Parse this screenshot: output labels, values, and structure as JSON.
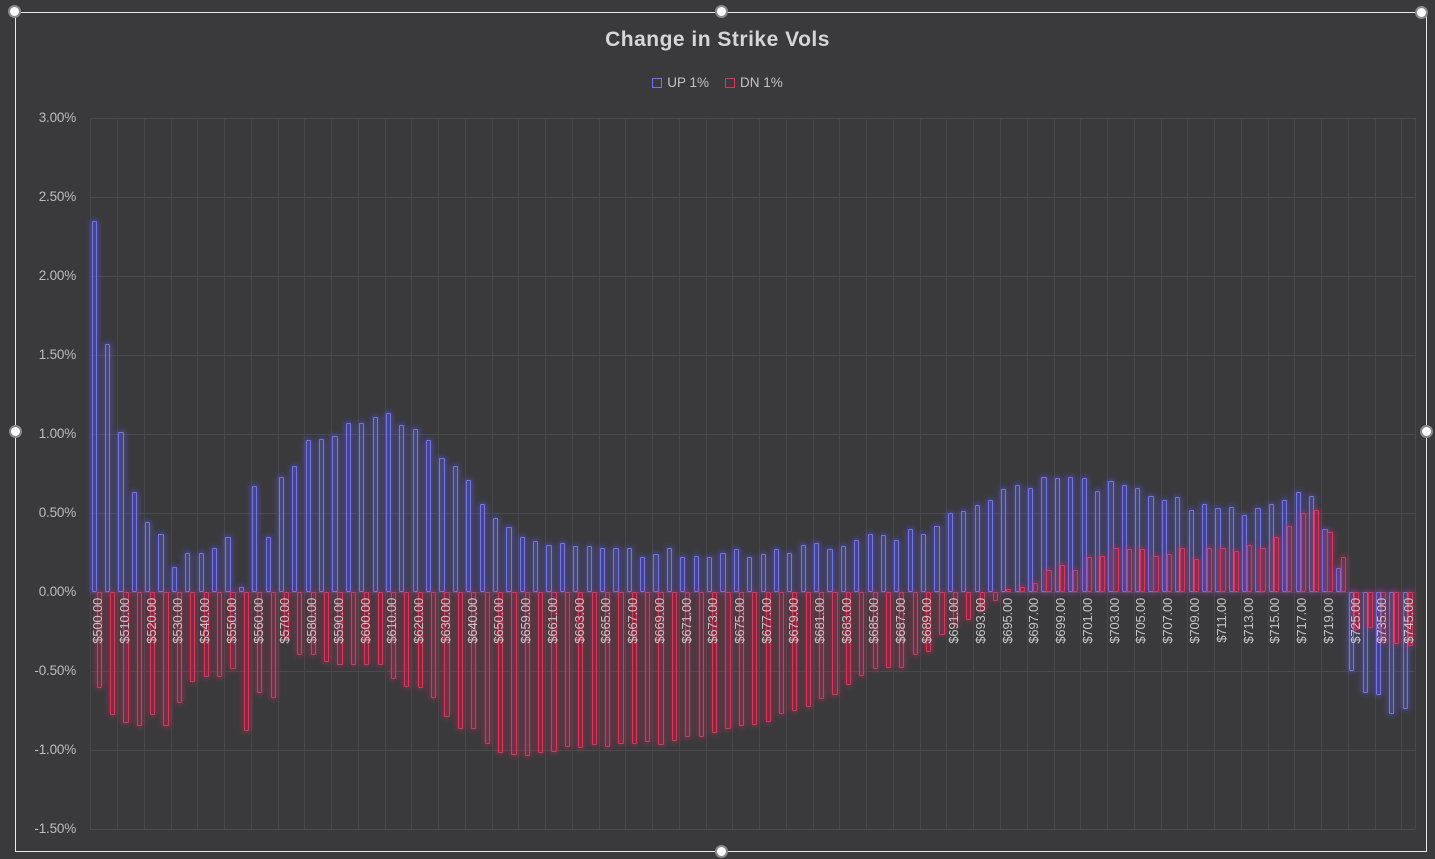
{
  "chart": {
    "title": "Change in Strike Vols",
    "legend_up_label": "UP 1%",
    "legend_dn_label": "DN 1%"
  },
  "colors": {
    "background": "#3a3a3d",
    "gridline": "#4b4b4f",
    "axis_text": "#bcbcbc",
    "title_text": "#d6d6d6",
    "up_stroke": "#7373f0",
    "dn_stroke": "#e0335a",
    "selection_frame": "#e9e9e9"
  },
  "chart_data": {
    "type": "bar",
    "title": "Change in Strike Vols",
    "xlabel": "",
    "ylabel": "",
    "ylim": [
      -1.5,
      3.0
    ],
    "grid": true,
    "legend_position": "top",
    "y_tick_labels": [
      "3.00%",
      "2.50%",
      "2.00%",
      "1.50%",
      "1.00%",
      "0.50%",
      "0.00%",
      "-0.50%",
      "-1.00%",
      "-1.50%"
    ],
    "y_tick_values": [
      3.0,
      2.5,
      2.0,
      1.5,
      1.0,
      0.5,
      0.0,
      -0.5,
      -1.0,
      -1.5
    ],
    "x_label_every": 2,
    "x_tick_labels": [
      "$500.00",
      "$510.00",
      "$520.00",
      "$530.00",
      "$540.00",
      "$550.00",
      "$560.00",
      "$570.00",
      "$580.00",
      "$590.00",
      "$600.00",
      "$610.00",
      "$620.00",
      "$630.00",
      "$640.00",
      "$650.00",
      "$659.00",
      "$661.00",
      "$663.00",
      "$665.00",
      "$667.00",
      "$669.00",
      "$671.00",
      "$673.00",
      "$675.00",
      "$677.00",
      "$679.00",
      "$681.00",
      "$683.00",
      "$685.00",
      "$687.00",
      "$689.00",
      "$691.00",
      "$693.00",
      "$695.00",
      "$697.00",
      "$699.00",
      "$701.00",
      "$703.00",
      "$705.00",
      "$707.00",
      "$709.00",
      "$711.00",
      "$713.00",
      "$715.00",
      "$717.00",
      "$719.00",
      "$725.00",
      "$735.00",
      "$745.00"
    ],
    "categories": [
      500,
      505,
      510,
      515,
      520,
      525,
      530,
      535,
      540,
      545,
      550,
      555,
      560,
      565,
      570,
      575,
      580,
      585,
      590,
      595,
      600,
      605,
      610,
      615,
      620,
      625,
      630,
      635,
      640,
      645,
      650,
      655,
      659,
      660,
      661,
      662,
      663,
      664,
      665,
      666,
      667,
      668,
      669,
      670,
      671,
      672,
      673,
      674,
      675,
      676,
      677,
      678,
      679,
      680,
      681,
      682,
      683,
      684,
      685,
      686,
      687,
      688,
      689,
      690,
      691,
      692,
      693,
      694,
      695,
      696,
      697,
      698,
      699,
      700,
      701,
      702,
      703,
      704,
      705,
      706,
      707,
      708,
      709,
      710,
      711,
      712,
      713,
      714,
      715,
      716,
      717,
      718,
      719,
      720,
      725,
      730,
      735,
      740,
      745
    ],
    "series": [
      {
        "name": "UP 1%",
        "color": "#7373f0",
        "values": [
          2.35,
          1.57,
          1.01,
          0.63,
          0.44,
          0.37,
          0.16,
          0.25,
          0.25,
          0.28,
          0.35,
          0.03,
          0.67,
          0.35,
          0.73,
          0.8,
          0.96,
          0.97,
          0.99,
          1.07,
          1.07,
          1.11,
          1.13,
          1.06,
          1.03,
          0.96,
          0.85,
          0.8,
          0.71,
          0.56,
          0.47,
          0.41,
          0.35,
          0.32,
          0.3,
          0.31,
          0.29,
          0.29,
          0.28,
          0.28,
          0.28,
          0.22,
          0.24,
          0.28,
          0.22,
          0.23,
          0.22,
          0.25,
          0.27,
          0.22,
          0.24,
          0.27,
          0.25,
          0.3,
          0.31,
          0.27,
          0.29,
          0.33,
          0.37,
          0.36,
          0.33,
          0.4,
          0.37,
          0.42,
          0.5,
          0.51,
          0.55,
          0.58,
          0.65,
          0.68,
          0.66,
          0.73,
          0.72,
          0.73,
          0.72,
          0.64,
          0.7,
          0.68,
          0.66,
          0.61,
          0.58,
          0.6,
          0.52,
          0.56,
          0.53,
          0.54,
          0.49,
          0.53,
          0.56,
          0.58,
          0.63,
          0.61,
          0.4,
          0.15,
          -0.5,
          -0.64,
          -0.65,
          -0.77,
          -0.74
        ]
      },
      {
        "name": "DN 1%",
        "color": "#e0335a",
        "values": [
          -0.61,
          -0.78,
          -0.83,
          -0.85,
          -0.78,
          -0.85,
          -0.7,
          -0.57,
          -0.54,
          -0.54,
          -0.49,
          -0.88,
          -0.64,
          -0.67,
          -0.3,
          -0.4,
          -0.4,
          -0.44,
          -0.46,
          -0.46,
          -0.46,
          -0.46,
          -0.55,
          -0.6,
          -0.61,
          -0.67,
          -0.79,
          -0.87,
          -0.87,
          -0.96,
          -1.02,
          -1.03,
          -1.04,
          -1.02,
          -1.01,
          -0.98,
          -0.99,
          -0.97,
          -0.98,
          -0.96,
          -0.96,
          -0.95,
          -0.97,
          -0.94,
          -0.92,
          -0.92,
          -0.89,
          -0.87,
          -0.85,
          -0.84,
          -0.82,
          -0.77,
          -0.75,
          -0.73,
          -0.68,
          -0.65,
          -0.59,
          -0.53,
          -0.49,
          -0.48,
          -0.48,
          -0.4,
          -0.38,
          -0.27,
          -0.21,
          -0.18,
          -0.12,
          -0.06,
          0.02,
          0.03,
          0.06,
          0.14,
          0.17,
          0.14,
          0.22,
          0.23,
          0.28,
          0.27,
          0.27,
          0.23,
          0.24,
          0.28,
          0.21,
          0.28,
          0.28,
          0.26,
          0.3,
          0.28,
          0.35,
          0.42,
          0.5,
          0.52,
          0.38,
          0.22,
          -0.24,
          -0.23,
          -0.32,
          -0.33,
          -0.34
        ]
      }
    ]
  }
}
